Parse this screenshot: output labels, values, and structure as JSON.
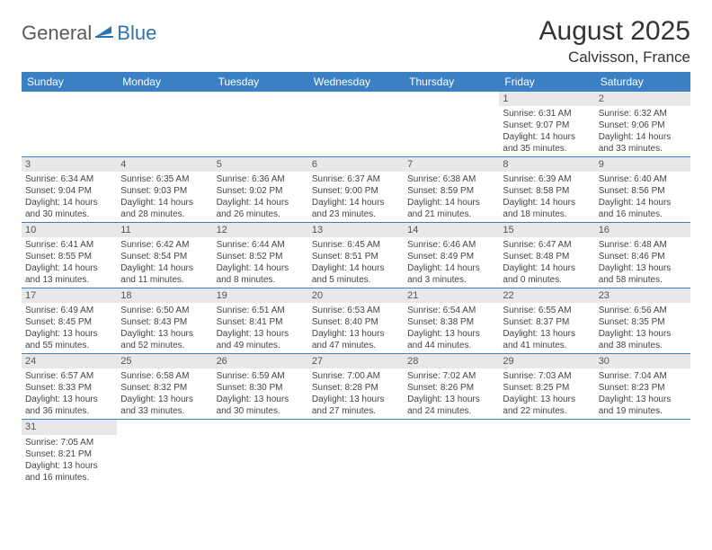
{
  "logo": {
    "part1": "General",
    "part2": "Blue"
  },
  "title": "August 2025",
  "location": "Calvisson, France",
  "colors": {
    "header_bg": "#3b80c2",
    "header_fg": "#ffffff",
    "daynum_bg": "#e8e8e8",
    "border": "#3b80c2",
    "logo_gray": "#5a5a5a",
    "logo_blue": "#2d72b5"
  },
  "weekdays": [
    "Sunday",
    "Monday",
    "Tuesday",
    "Wednesday",
    "Thursday",
    "Friday",
    "Saturday"
  ],
  "weeks": [
    [
      null,
      null,
      null,
      null,
      null,
      {
        "n": "1",
        "sr": "Sunrise: 6:31 AM",
        "ss": "Sunset: 9:07 PM",
        "dl1": "Daylight: 14 hours",
        "dl2": "and 35 minutes."
      },
      {
        "n": "2",
        "sr": "Sunrise: 6:32 AM",
        "ss": "Sunset: 9:06 PM",
        "dl1": "Daylight: 14 hours",
        "dl2": "and 33 minutes."
      }
    ],
    [
      {
        "n": "3",
        "sr": "Sunrise: 6:34 AM",
        "ss": "Sunset: 9:04 PM",
        "dl1": "Daylight: 14 hours",
        "dl2": "and 30 minutes."
      },
      {
        "n": "4",
        "sr": "Sunrise: 6:35 AM",
        "ss": "Sunset: 9:03 PM",
        "dl1": "Daylight: 14 hours",
        "dl2": "and 28 minutes."
      },
      {
        "n": "5",
        "sr": "Sunrise: 6:36 AM",
        "ss": "Sunset: 9:02 PM",
        "dl1": "Daylight: 14 hours",
        "dl2": "and 26 minutes."
      },
      {
        "n": "6",
        "sr": "Sunrise: 6:37 AM",
        "ss": "Sunset: 9:00 PM",
        "dl1": "Daylight: 14 hours",
        "dl2": "and 23 minutes."
      },
      {
        "n": "7",
        "sr": "Sunrise: 6:38 AM",
        "ss": "Sunset: 8:59 PM",
        "dl1": "Daylight: 14 hours",
        "dl2": "and 21 minutes."
      },
      {
        "n": "8",
        "sr": "Sunrise: 6:39 AM",
        "ss": "Sunset: 8:58 PM",
        "dl1": "Daylight: 14 hours",
        "dl2": "and 18 minutes."
      },
      {
        "n": "9",
        "sr": "Sunrise: 6:40 AM",
        "ss": "Sunset: 8:56 PM",
        "dl1": "Daylight: 14 hours",
        "dl2": "and 16 minutes."
      }
    ],
    [
      {
        "n": "10",
        "sr": "Sunrise: 6:41 AM",
        "ss": "Sunset: 8:55 PM",
        "dl1": "Daylight: 14 hours",
        "dl2": "and 13 minutes."
      },
      {
        "n": "11",
        "sr": "Sunrise: 6:42 AM",
        "ss": "Sunset: 8:54 PM",
        "dl1": "Daylight: 14 hours",
        "dl2": "and 11 minutes."
      },
      {
        "n": "12",
        "sr": "Sunrise: 6:44 AM",
        "ss": "Sunset: 8:52 PM",
        "dl1": "Daylight: 14 hours",
        "dl2": "and 8 minutes."
      },
      {
        "n": "13",
        "sr": "Sunrise: 6:45 AM",
        "ss": "Sunset: 8:51 PM",
        "dl1": "Daylight: 14 hours",
        "dl2": "and 5 minutes."
      },
      {
        "n": "14",
        "sr": "Sunrise: 6:46 AM",
        "ss": "Sunset: 8:49 PM",
        "dl1": "Daylight: 14 hours",
        "dl2": "and 3 minutes."
      },
      {
        "n": "15",
        "sr": "Sunrise: 6:47 AM",
        "ss": "Sunset: 8:48 PM",
        "dl1": "Daylight: 14 hours",
        "dl2": "and 0 minutes."
      },
      {
        "n": "16",
        "sr": "Sunrise: 6:48 AM",
        "ss": "Sunset: 8:46 PM",
        "dl1": "Daylight: 13 hours",
        "dl2": "and 58 minutes."
      }
    ],
    [
      {
        "n": "17",
        "sr": "Sunrise: 6:49 AM",
        "ss": "Sunset: 8:45 PM",
        "dl1": "Daylight: 13 hours",
        "dl2": "and 55 minutes."
      },
      {
        "n": "18",
        "sr": "Sunrise: 6:50 AM",
        "ss": "Sunset: 8:43 PM",
        "dl1": "Daylight: 13 hours",
        "dl2": "and 52 minutes."
      },
      {
        "n": "19",
        "sr": "Sunrise: 6:51 AM",
        "ss": "Sunset: 8:41 PM",
        "dl1": "Daylight: 13 hours",
        "dl2": "and 49 minutes."
      },
      {
        "n": "20",
        "sr": "Sunrise: 6:53 AM",
        "ss": "Sunset: 8:40 PM",
        "dl1": "Daylight: 13 hours",
        "dl2": "and 47 minutes."
      },
      {
        "n": "21",
        "sr": "Sunrise: 6:54 AM",
        "ss": "Sunset: 8:38 PM",
        "dl1": "Daylight: 13 hours",
        "dl2": "and 44 minutes."
      },
      {
        "n": "22",
        "sr": "Sunrise: 6:55 AM",
        "ss": "Sunset: 8:37 PM",
        "dl1": "Daylight: 13 hours",
        "dl2": "and 41 minutes."
      },
      {
        "n": "23",
        "sr": "Sunrise: 6:56 AM",
        "ss": "Sunset: 8:35 PM",
        "dl1": "Daylight: 13 hours",
        "dl2": "and 38 minutes."
      }
    ],
    [
      {
        "n": "24",
        "sr": "Sunrise: 6:57 AM",
        "ss": "Sunset: 8:33 PM",
        "dl1": "Daylight: 13 hours",
        "dl2": "and 36 minutes."
      },
      {
        "n": "25",
        "sr": "Sunrise: 6:58 AM",
        "ss": "Sunset: 8:32 PM",
        "dl1": "Daylight: 13 hours",
        "dl2": "and 33 minutes."
      },
      {
        "n": "26",
        "sr": "Sunrise: 6:59 AM",
        "ss": "Sunset: 8:30 PM",
        "dl1": "Daylight: 13 hours",
        "dl2": "and 30 minutes."
      },
      {
        "n": "27",
        "sr": "Sunrise: 7:00 AM",
        "ss": "Sunset: 8:28 PM",
        "dl1": "Daylight: 13 hours",
        "dl2": "and 27 minutes."
      },
      {
        "n": "28",
        "sr": "Sunrise: 7:02 AM",
        "ss": "Sunset: 8:26 PM",
        "dl1": "Daylight: 13 hours",
        "dl2": "and 24 minutes."
      },
      {
        "n": "29",
        "sr": "Sunrise: 7:03 AM",
        "ss": "Sunset: 8:25 PM",
        "dl1": "Daylight: 13 hours",
        "dl2": "and 22 minutes."
      },
      {
        "n": "30",
        "sr": "Sunrise: 7:04 AM",
        "ss": "Sunset: 8:23 PM",
        "dl1": "Daylight: 13 hours",
        "dl2": "and 19 minutes."
      }
    ],
    [
      {
        "n": "31",
        "sr": "Sunrise: 7:05 AM",
        "ss": "Sunset: 8:21 PM",
        "dl1": "Daylight: 13 hours",
        "dl2": "and 16 minutes."
      },
      null,
      null,
      null,
      null,
      null,
      null
    ]
  ]
}
